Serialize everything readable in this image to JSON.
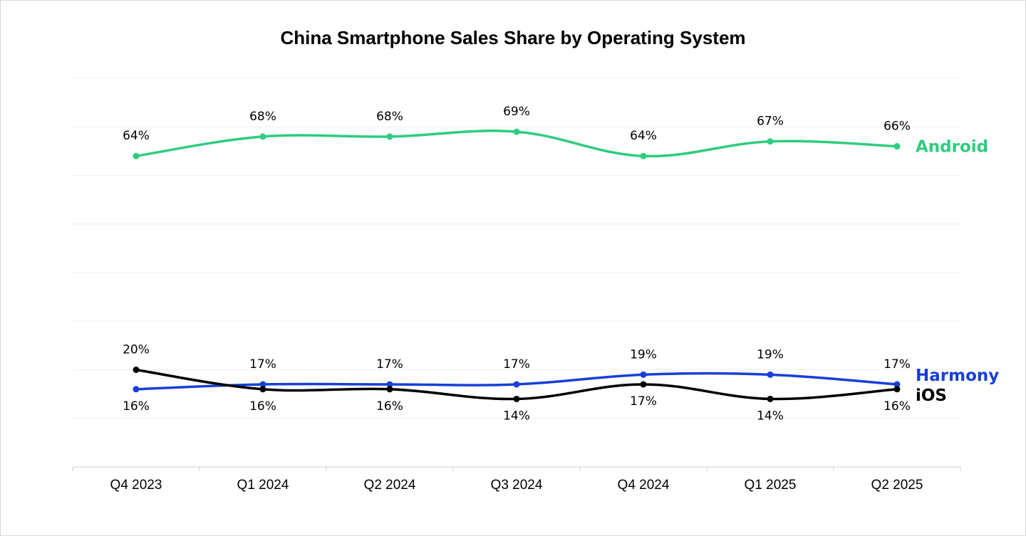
{
  "chart_data": {
    "type": "line",
    "title": "China Smartphone Sales Share by Operating System",
    "xlabel": "",
    "ylabel": "",
    "categories": [
      "Q4 2023",
      "Q1 2024",
      "Q2 2024",
      "Q3 2024",
      "Q4 2024",
      "Q1 2025",
      "Q2 2025"
    ],
    "ylim": [
      0,
      80
    ],
    "grid": true,
    "legend": "direct labels at right end of each line",
    "series": [
      {
        "name": "Android",
        "color": "#2ecc7f",
        "values": [
          64,
          68,
          68,
          69,
          64,
          67,
          66
        ],
        "labels": [
          "64%",
          "68%",
          "68%",
          "69%",
          "64%",
          "67%",
          "66%"
        ],
        "label_position": "above"
      },
      {
        "name": "Harmony",
        "color": "#1740d8",
        "values": [
          16,
          17,
          17,
          17,
          19,
          19,
          17
        ],
        "labels": [
          "16%",
          "17%",
          "17%",
          "17%",
          "19%",
          "19%",
          "17%"
        ],
        "label_position": [
          "below",
          "above",
          "above",
          "above",
          "above",
          "above",
          "above"
        ]
      },
      {
        "name": "iOS",
        "color": "#000000",
        "values": [
          20,
          16,
          16,
          14,
          17,
          14,
          16
        ],
        "labels": [
          "20%",
          "16%",
          "16%",
          "14%",
          "17%",
          "14%",
          "16%"
        ],
        "label_position": [
          "above",
          "below",
          "below",
          "below",
          "below",
          "below",
          "below"
        ]
      }
    ]
  }
}
